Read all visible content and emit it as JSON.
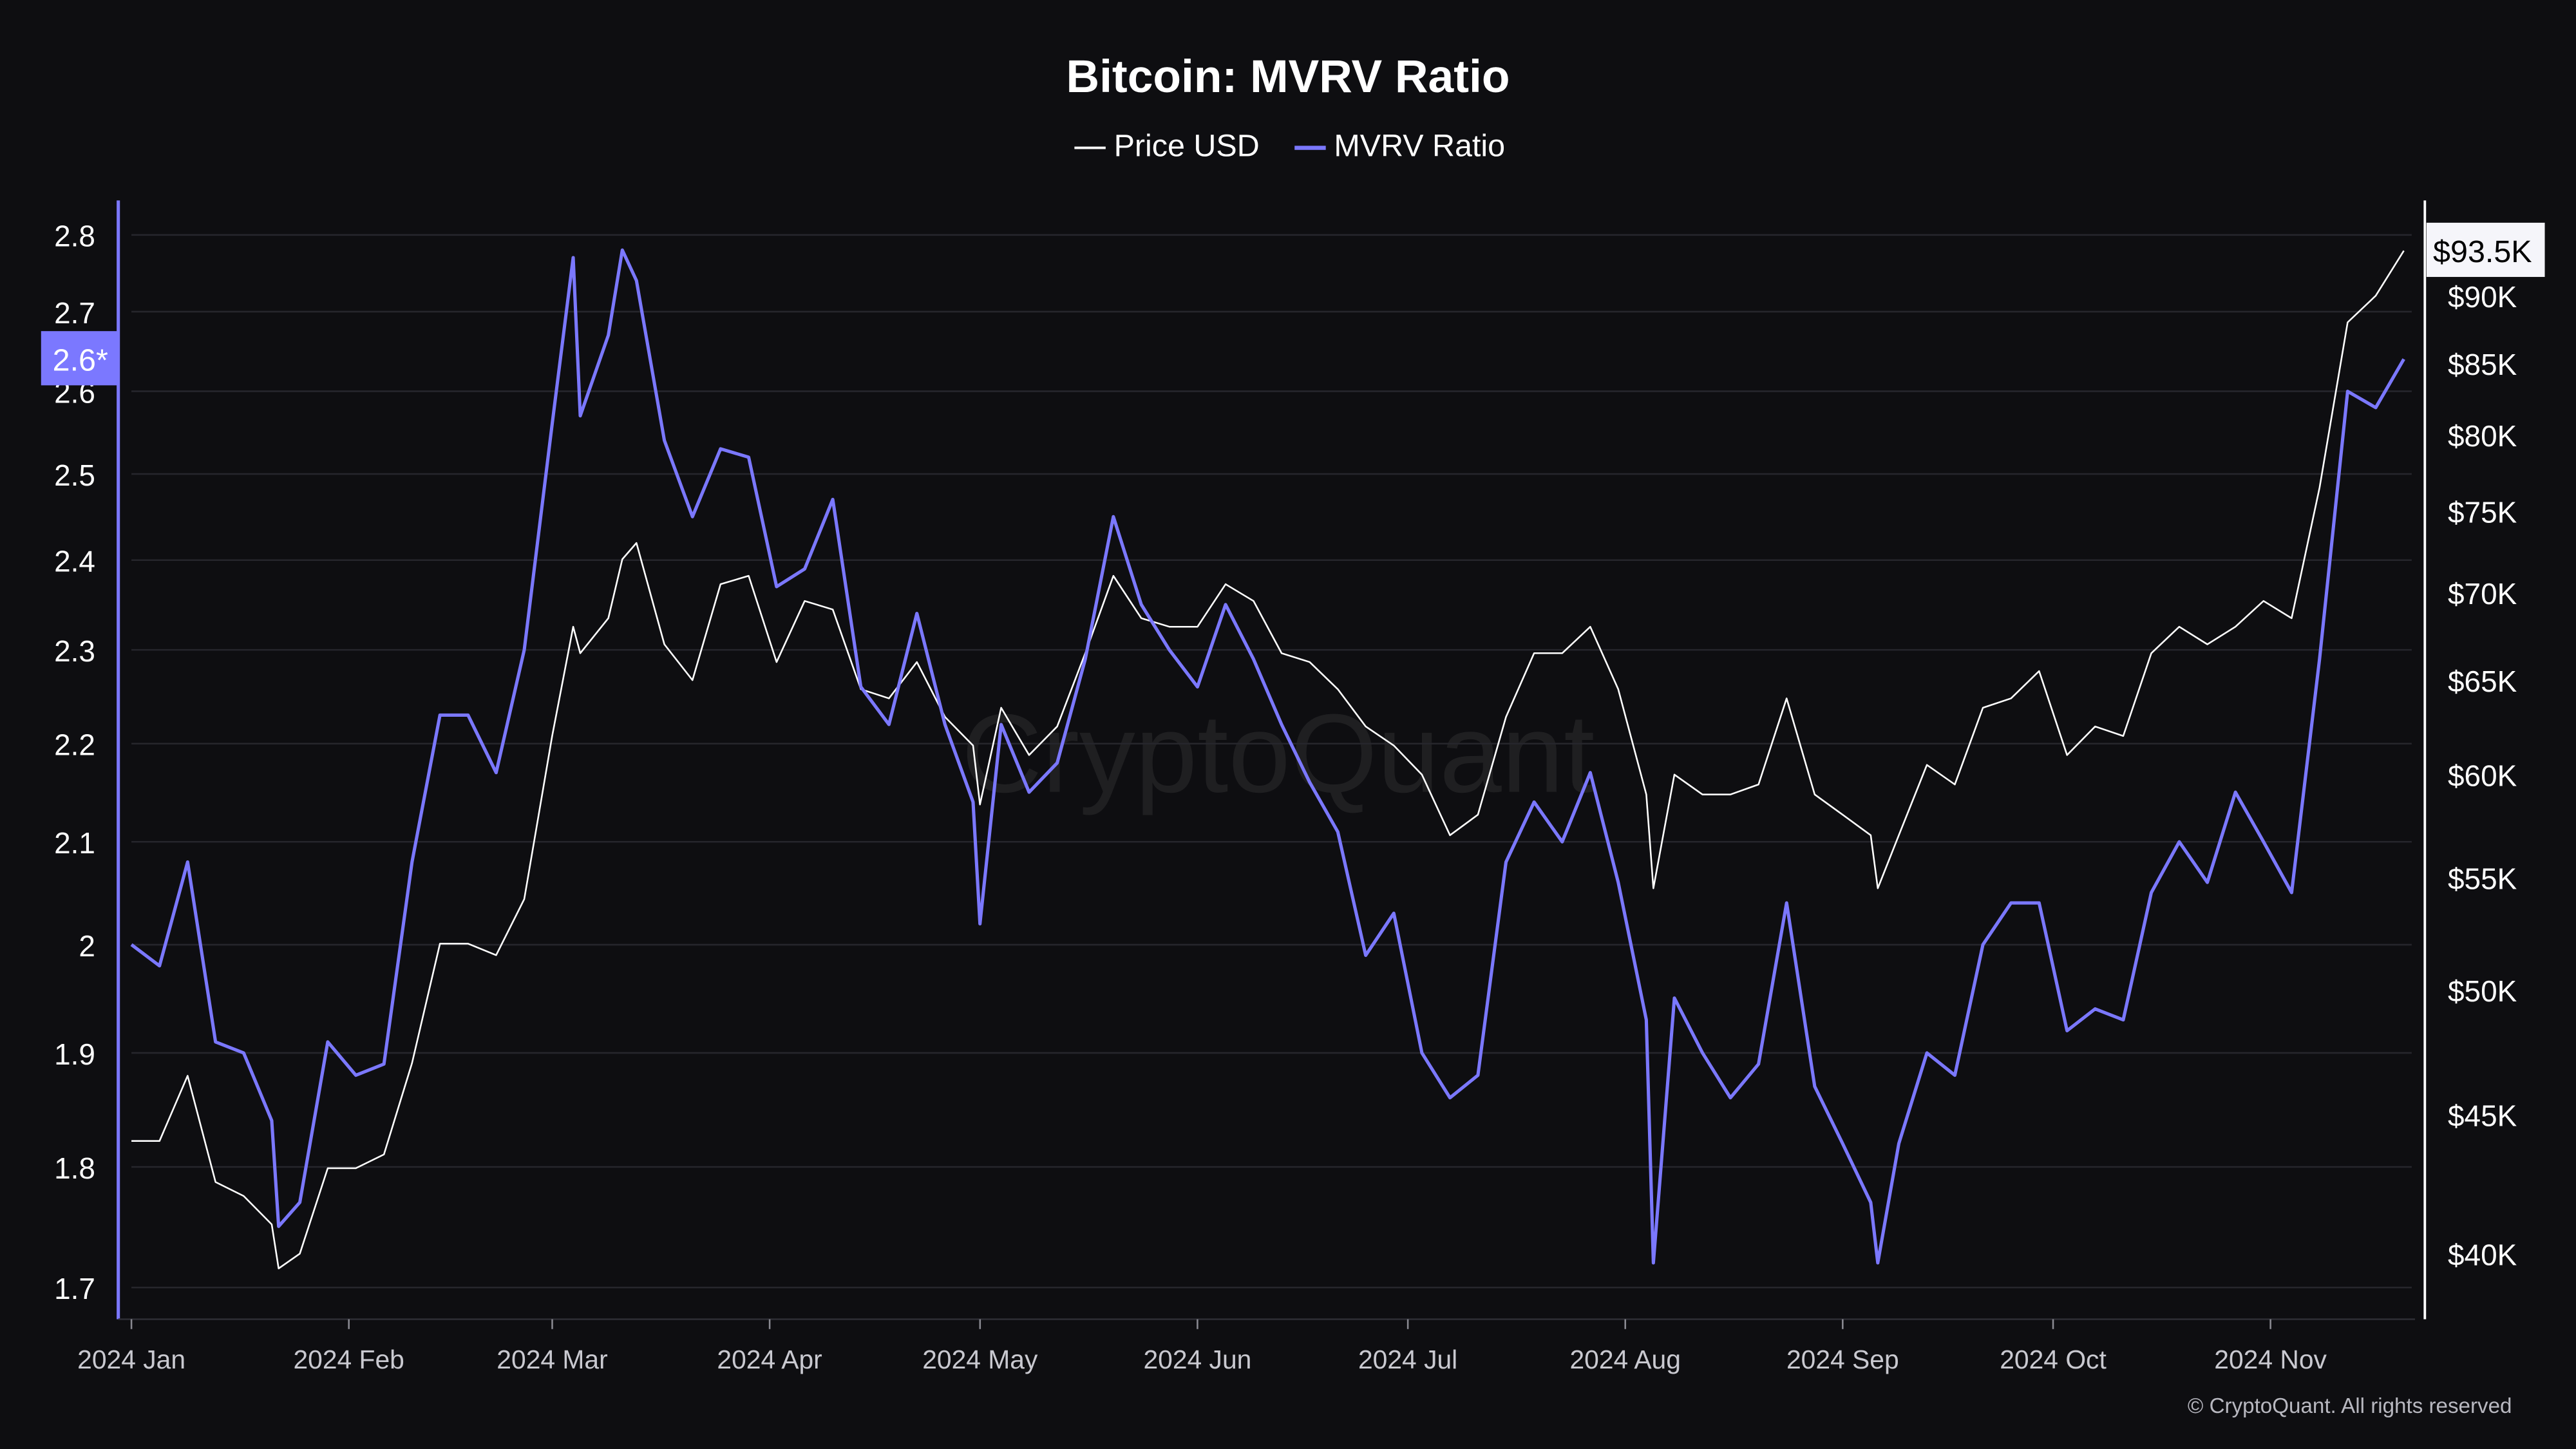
{
  "chart_data": {
    "type": "line",
    "title": "Bitcoin: MVRV Ratio",
    "watermark": "CryptoQuant",
    "copyright": "© CryptoQuant. All rights reserved",
    "legend": {
      "placement": "top-center",
      "entries": [
        "Price USD",
        "MVRV Ratio"
      ]
    },
    "colors": {
      "background": "#0e0e11",
      "price": "#ffffff",
      "mvrv": "#7b78ff",
      "grid": "#26262c"
    },
    "grid": true,
    "x_axis": {
      "type": "date",
      "range": [
        "2024-01-01",
        "2024-11-20"
      ],
      "ticks": [
        {
          "date": "2024-01-01",
          "label": "2024 Jan"
        },
        {
          "date": "2024-02-01",
          "label": "2024 Feb"
        },
        {
          "date": "2024-03-01",
          "label": "2024 Mar"
        },
        {
          "date": "2024-04-01",
          "label": "2024 Apr"
        },
        {
          "date": "2024-05-01",
          "label": "2024 May"
        },
        {
          "date": "2024-06-01",
          "label": "2024 Jun"
        },
        {
          "date": "2024-07-01",
          "label": "2024 Jul"
        },
        {
          "date": "2024-08-01",
          "label": "2024 Aug"
        },
        {
          "date": "2024-09-01",
          "label": "2024 Sep"
        },
        {
          "date": "2024-10-01",
          "label": "2024 Oct"
        },
        {
          "date": "2024-11-01",
          "label": "2024 Nov"
        }
      ]
    },
    "y_left": {
      "scale": "log",
      "range": [
        1.66,
        2.92
      ],
      "ticks": [
        {
          "value": 2.8,
          "label": "2.8"
        },
        {
          "value": 2.7,
          "label": "2.7"
        },
        {
          "value": 2.6,
          "label": "2.6"
        },
        {
          "value": 2.5,
          "label": "2.5"
        },
        {
          "value": 2.4,
          "label": "2.4"
        },
        {
          "value": 2.3,
          "label": "2.3"
        },
        {
          "value": 2.2,
          "label": "2.2"
        },
        {
          "value": 2.1,
          "label": "2.1"
        },
        {
          "value": 2.0,
          "label": "2"
        },
        {
          "value": 1.9,
          "label": "1.9"
        },
        {
          "value": 1.8,
          "label": "1.8"
        },
        {
          "value": 1.7,
          "label": "1.7"
        }
      ],
      "current_label": "2.6*",
      "current_value": 2.64
    },
    "y_right": {
      "scale": "log",
      "range": [
        37500,
        103000
      ],
      "ticks": [
        {
          "value": 90000,
          "label": "$90K"
        },
        {
          "value": 85000,
          "label": "$85K"
        },
        {
          "value": 80000,
          "label": "$80K"
        },
        {
          "value": 75000,
          "label": "$75K"
        },
        {
          "value": 70000,
          "label": "$70K"
        },
        {
          "value": 65000,
          "label": "$65K"
        },
        {
          "value": 60000,
          "label": "$60K"
        },
        {
          "value": 55000,
          "label": "$55K"
        },
        {
          "value": 50000,
          "label": "$50K"
        },
        {
          "value": 45000,
          "label": "$45K"
        },
        {
          "value": 40000,
          "label": "$40K"
        }
      ],
      "current_label": "$93.5K",
      "current_value": 93500
    },
    "series": [
      {
        "name": "Price USD",
        "axis": "right",
        "points": [
          [
            "2024-01-01",
            44000
          ],
          [
            "2024-01-05",
            44000
          ],
          [
            "2024-01-09",
            46500
          ],
          [
            "2024-01-13",
            42500
          ],
          [
            "2024-01-17",
            42000
          ],
          [
            "2024-01-21",
            41000
          ],
          [
            "2024-01-22",
            39500
          ],
          [
            "2024-01-25",
            40000
          ],
          [
            "2024-01-29",
            43000
          ],
          [
            "2024-02-02",
            43000
          ],
          [
            "2024-02-06",
            43500
          ],
          [
            "2024-02-10",
            47000
          ],
          [
            "2024-02-14",
            52000
          ],
          [
            "2024-02-18",
            52000
          ],
          [
            "2024-02-22",
            51500
          ],
          [
            "2024-02-26",
            54000
          ],
          [
            "2024-03-01",
            62000
          ],
          [
            "2024-03-04",
            68000
          ],
          [
            "2024-03-05",
            66500
          ],
          [
            "2024-03-09",
            68500
          ],
          [
            "2024-03-11",
            72000
          ],
          [
            "2024-03-13",
            73000
          ],
          [
            "2024-03-17",
            67000
          ],
          [
            "2024-03-21",
            65000
          ],
          [
            "2024-03-25",
            70500
          ],
          [
            "2024-03-29",
            71000
          ],
          [
            "2024-04-02",
            66000
          ],
          [
            "2024-04-06",
            69500
          ],
          [
            "2024-04-10",
            69000
          ],
          [
            "2024-04-14",
            64500
          ],
          [
            "2024-04-18",
            64000
          ],
          [
            "2024-04-22",
            66000
          ],
          [
            "2024-04-26",
            63000
          ],
          [
            "2024-04-30",
            61500
          ],
          [
            "2024-05-01",
            58500
          ],
          [
            "2024-05-04",
            63500
          ],
          [
            "2024-05-08",
            61000
          ],
          [
            "2024-05-12",
            62500
          ],
          [
            "2024-05-16",
            66500
          ],
          [
            "2024-05-20",
            71000
          ],
          [
            "2024-05-24",
            68500
          ],
          [
            "2024-05-28",
            68000
          ],
          [
            "2024-06-01",
            68000
          ],
          [
            "2024-06-05",
            70500
          ],
          [
            "2024-06-09",
            69500
          ],
          [
            "2024-06-13",
            66500
          ],
          [
            "2024-06-17",
            66000
          ],
          [
            "2024-06-21",
            64500
          ],
          [
            "2024-06-25",
            62500
          ],
          [
            "2024-06-29",
            61500
          ],
          [
            "2024-07-03",
            60000
          ],
          [
            "2024-07-07",
            57000
          ],
          [
            "2024-07-11",
            58000
          ],
          [
            "2024-07-15",
            63000
          ],
          [
            "2024-07-19",
            66500
          ],
          [
            "2024-07-23",
            66500
          ],
          [
            "2024-07-27",
            68000
          ],
          [
            "2024-07-31",
            64500
          ],
          [
            "2024-08-04",
            59000
          ],
          [
            "2024-08-05",
            54500
          ],
          [
            "2024-08-08",
            60000
          ],
          [
            "2024-08-12",
            59000
          ],
          [
            "2024-08-16",
            59000
          ],
          [
            "2024-08-20",
            59500
          ],
          [
            "2024-08-24",
            64000
          ],
          [
            "2024-08-28",
            59000
          ],
          [
            "2024-09-01",
            58000
          ],
          [
            "2024-09-05",
            57000
          ],
          [
            "2024-09-06",
            54500
          ],
          [
            "2024-09-09",
            57000
          ],
          [
            "2024-09-13",
            60500
          ],
          [
            "2024-09-17",
            59500
          ],
          [
            "2024-09-21",
            63500
          ],
          [
            "2024-09-25",
            64000
          ],
          [
            "2024-09-29",
            65500
          ],
          [
            "2024-10-03",
            61000
          ],
          [
            "2024-10-07",
            62500
          ],
          [
            "2024-10-11",
            62000
          ],
          [
            "2024-10-15",
            66500
          ],
          [
            "2024-10-19",
            68000
          ],
          [
            "2024-10-23",
            67000
          ],
          [
            "2024-10-27",
            68000
          ],
          [
            "2024-10-31",
            69500
          ],
          [
            "2024-11-04",
            68500
          ],
          [
            "2024-11-08",
            76500
          ],
          [
            "2024-11-12",
            88000
          ],
          [
            "2024-11-16",
            90000
          ],
          [
            "2024-11-20",
            93500
          ]
        ]
      },
      {
        "name": "MVRV Ratio",
        "axis": "left",
        "points": [
          [
            "2024-01-01",
            2.0
          ],
          [
            "2024-01-05",
            1.98
          ],
          [
            "2024-01-09",
            2.08
          ],
          [
            "2024-01-13",
            1.91
          ],
          [
            "2024-01-17",
            1.9
          ],
          [
            "2024-01-21",
            1.84
          ],
          [
            "2024-01-22",
            1.75
          ],
          [
            "2024-01-25",
            1.77
          ],
          [
            "2024-01-29",
            1.91
          ],
          [
            "2024-02-02",
            1.88
          ],
          [
            "2024-02-06",
            1.89
          ],
          [
            "2024-02-10",
            2.08
          ],
          [
            "2024-02-14",
            2.23
          ],
          [
            "2024-02-18",
            2.23
          ],
          [
            "2024-02-22",
            2.17
          ],
          [
            "2024-02-26",
            2.3
          ],
          [
            "2024-03-01",
            2.56
          ],
          [
            "2024-03-04",
            2.77
          ],
          [
            "2024-03-05",
            2.57
          ],
          [
            "2024-03-09",
            2.67
          ],
          [
            "2024-03-11",
            2.78
          ],
          [
            "2024-03-13",
            2.74
          ],
          [
            "2024-03-17",
            2.54
          ],
          [
            "2024-03-21",
            2.45
          ],
          [
            "2024-03-25",
            2.53
          ],
          [
            "2024-03-29",
            2.52
          ],
          [
            "2024-04-02",
            2.37
          ],
          [
            "2024-04-06",
            2.39
          ],
          [
            "2024-04-10",
            2.47
          ],
          [
            "2024-04-14",
            2.26
          ],
          [
            "2024-04-18",
            2.22
          ],
          [
            "2024-04-22",
            2.34
          ],
          [
            "2024-04-26",
            2.22
          ],
          [
            "2024-04-30",
            2.14
          ],
          [
            "2024-05-01",
            2.02
          ],
          [
            "2024-05-04",
            2.22
          ],
          [
            "2024-05-08",
            2.15
          ],
          [
            "2024-05-12",
            2.18
          ],
          [
            "2024-05-16",
            2.29
          ],
          [
            "2024-05-20",
            2.45
          ],
          [
            "2024-05-24",
            2.35
          ],
          [
            "2024-05-28",
            2.3
          ],
          [
            "2024-06-01",
            2.26
          ],
          [
            "2024-06-05",
            2.35
          ],
          [
            "2024-06-09",
            2.29
          ],
          [
            "2024-06-13",
            2.22
          ],
          [
            "2024-06-17",
            2.16
          ],
          [
            "2024-06-21",
            2.11
          ],
          [
            "2024-06-25",
            1.99
          ],
          [
            "2024-06-29",
            2.03
          ],
          [
            "2024-07-03",
            1.9
          ],
          [
            "2024-07-07",
            1.86
          ],
          [
            "2024-07-11",
            1.88
          ],
          [
            "2024-07-15",
            2.08
          ],
          [
            "2024-07-19",
            2.14
          ],
          [
            "2024-07-23",
            2.1
          ],
          [
            "2024-07-27",
            2.17
          ],
          [
            "2024-07-31",
            2.06
          ],
          [
            "2024-08-04",
            1.93
          ],
          [
            "2024-08-05",
            1.72
          ],
          [
            "2024-08-08",
            1.95
          ],
          [
            "2024-08-12",
            1.9
          ],
          [
            "2024-08-16",
            1.86
          ],
          [
            "2024-08-20",
            1.89
          ],
          [
            "2024-08-24",
            2.04
          ],
          [
            "2024-08-28",
            1.87
          ],
          [
            "2024-09-01",
            1.82
          ],
          [
            "2024-09-05",
            1.77
          ],
          [
            "2024-09-06",
            1.72
          ],
          [
            "2024-09-09",
            1.82
          ],
          [
            "2024-09-13",
            1.9
          ],
          [
            "2024-09-17",
            1.88
          ],
          [
            "2024-09-21",
            2.0
          ],
          [
            "2024-09-25",
            2.04
          ],
          [
            "2024-09-29",
            2.04
          ],
          [
            "2024-10-03",
            1.92
          ],
          [
            "2024-10-07",
            1.94
          ],
          [
            "2024-10-11",
            1.93
          ],
          [
            "2024-10-15",
            2.05
          ],
          [
            "2024-10-19",
            2.1
          ],
          [
            "2024-10-23",
            2.06
          ],
          [
            "2024-10-27",
            2.15
          ],
          [
            "2024-10-31",
            2.1
          ],
          [
            "2024-11-04",
            2.05
          ],
          [
            "2024-11-08",
            2.29
          ],
          [
            "2024-11-12",
            2.6
          ],
          [
            "2024-11-16",
            2.58
          ],
          [
            "2024-11-20",
            2.64
          ]
        ]
      }
    ]
  }
}
